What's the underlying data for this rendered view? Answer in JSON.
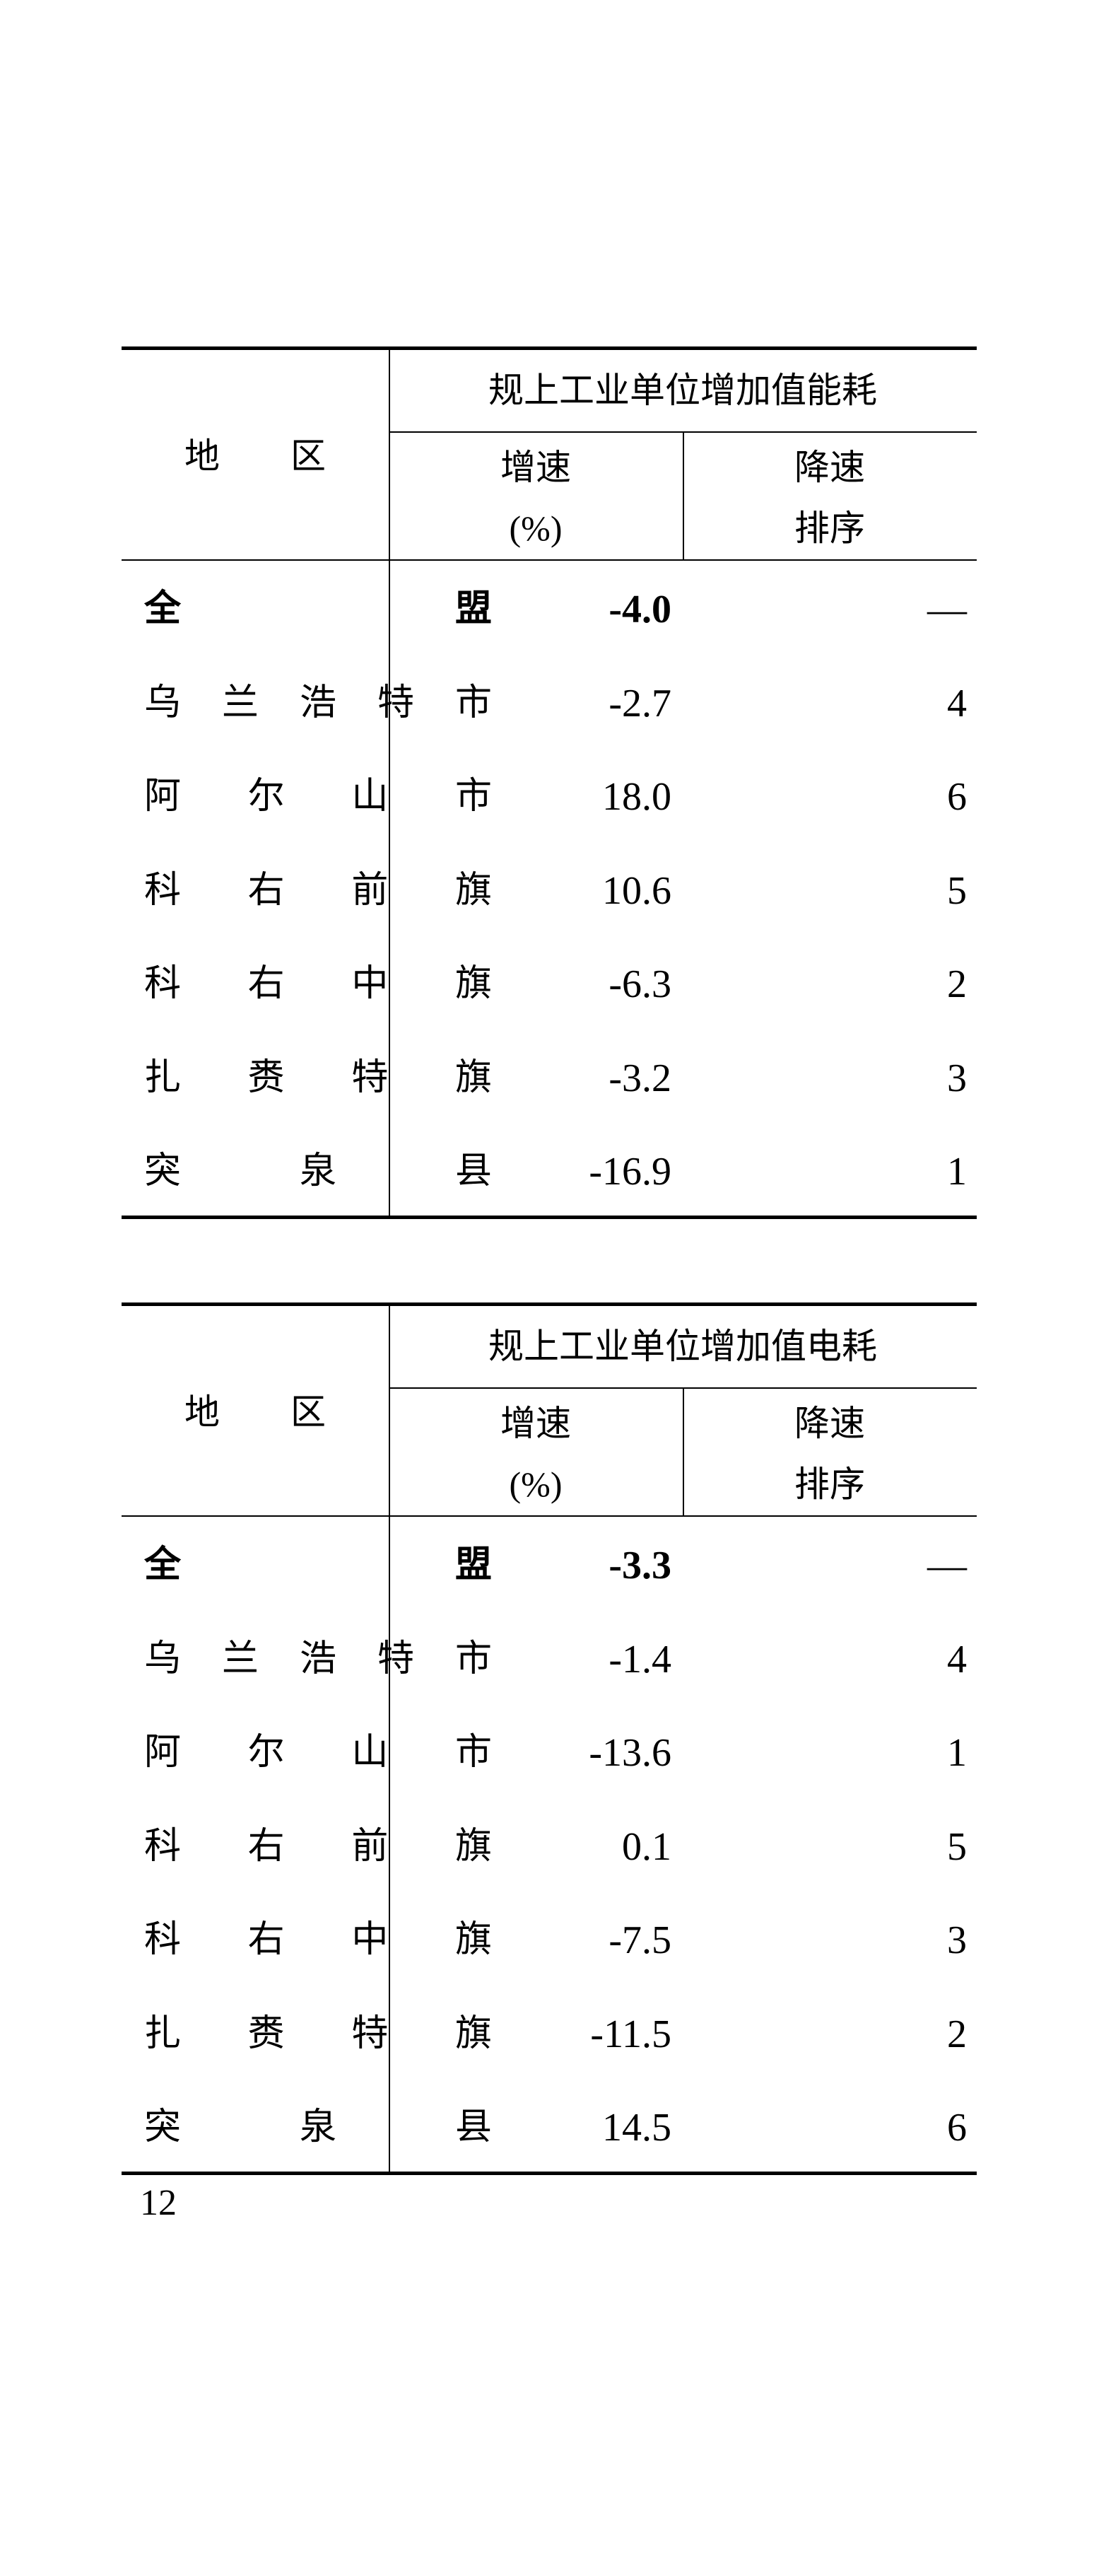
{
  "tables": [
    {
      "region_header": "地　　区",
      "group_header": "规上工业单位增加值能耗",
      "col_growth": [
        "增速",
        "(%)"
      ],
      "col_rank": [
        "降速",
        "排序"
      ],
      "rows": [
        {
          "region": "全盟",
          "growth": "-4.0",
          "rank": "—",
          "bold": true
        },
        {
          "region": "乌兰浩特市",
          "growth": "-2.7",
          "rank": "4"
        },
        {
          "region": "阿尔山市",
          "growth": "18.0",
          "rank": "6"
        },
        {
          "region": "科右前旗",
          "growth": "10.6",
          "rank": "5"
        },
        {
          "region": "科右中旗",
          "growth": "-6.3",
          "rank": "2"
        },
        {
          "region": "扎赉特旗",
          "growth": "-3.2",
          "rank": "3"
        },
        {
          "region": "突泉县",
          "growth": "-16.9",
          "rank": "1"
        }
      ]
    },
    {
      "region_header": "地　　区",
      "group_header": "规上工业单位增加值电耗",
      "col_growth": [
        "增速",
        "(%)"
      ],
      "col_rank": [
        "降速",
        "排序"
      ],
      "rows": [
        {
          "region": "全盟",
          "growth": "-3.3",
          "rank": "—",
          "bold": true
        },
        {
          "region": "乌兰浩特市",
          "growth": "-1.4",
          "rank": "4"
        },
        {
          "region": "阿尔山市",
          "growth": "-13.6",
          "rank": "1"
        },
        {
          "region": "科右前旗",
          "growth": "0.1",
          "rank": "5"
        },
        {
          "region": "科右中旗",
          "growth": "-7.5",
          "rank": "3"
        },
        {
          "region": "扎赉特旗",
          "growth": "-11.5",
          "rank": "2"
        },
        {
          "region": "突泉县",
          "growth": "14.5",
          "rank": "6"
        }
      ]
    }
  ],
  "page_number": "12"
}
